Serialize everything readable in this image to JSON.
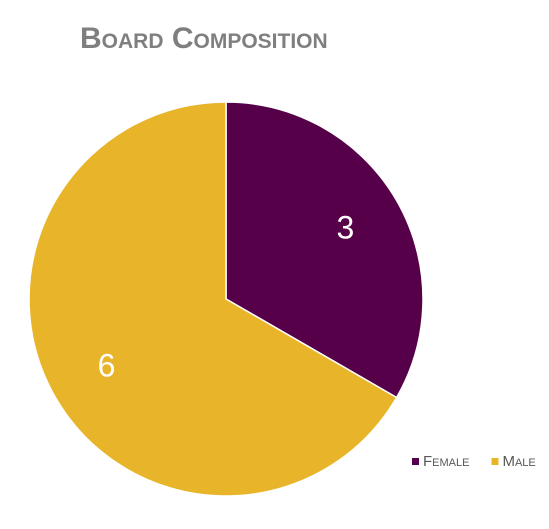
{
  "chart_data": {
    "type": "pie",
    "title": "Board Composition",
    "categories": [
      "Female",
      "Male"
    ],
    "values": [
      3,
      6
    ],
    "colors": [
      "#560049",
      "#e8b52a"
    ],
    "legend": "bottom-right"
  }
}
